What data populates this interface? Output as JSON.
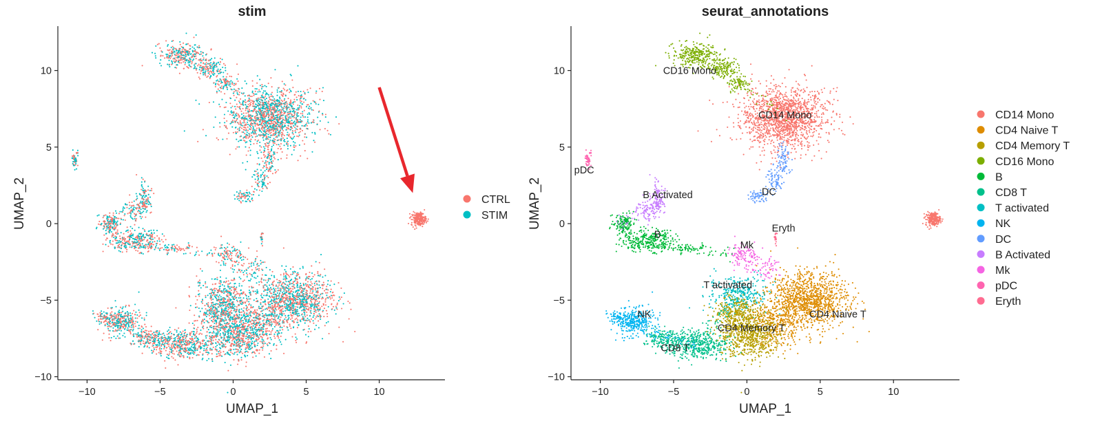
{
  "chart_data": [
    {
      "type": "scatter",
      "title": "stim",
      "xlabel": "UMAP_1",
      "ylabel": "UMAP_2",
      "xlim": [
        -12,
        14.5
      ],
      "ylim": [
        -10.2,
        12.9
      ],
      "xticks": [
        -10,
        -5,
        0,
        5,
        10
      ],
      "yticks": [
        -10,
        -5,
        0,
        5,
        10
      ],
      "grid": false,
      "legend_position": "right",
      "legend": [
        {
          "name": "CTRL",
          "color": "#F8766D"
        },
        {
          "name": "STIM",
          "color": "#00BFC4"
        }
      ],
      "annotations": [
        {
          "type": "arrow",
          "color": "#E8272D",
          "from": [
            10,
            8.9
          ],
          "to": [
            12.3,
            2
          ]
        }
      ]
    },
    {
      "type": "scatter",
      "title": "seurat_annotations",
      "xlabel": "UMAP_1",
      "ylabel": "UMAP_2",
      "xlim": [
        -12,
        14.5
      ],
      "ylim": [
        -10.2,
        12.9
      ],
      "xticks": [
        -10,
        -5,
        0,
        5,
        10
      ],
      "yticks": [
        -10,
        -5,
        0,
        5,
        10
      ],
      "grid": false,
      "legend_position": "right",
      "legend": [
        {
          "name": "CD14 Mono",
          "color": "#F8766D"
        },
        {
          "name": "CD4 Naive T",
          "color": "#DE8C00"
        },
        {
          "name": "CD4 Memory T",
          "color": "#B79F00"
        },
        {
          "name": "CD16 Mono",
          "color": "#7CAE00"
        },
        {
          "name": "B",
          "color": "#00BA38"
        },
        {
          "name": "CD8 T",
          "color": "#00C08B"
        },
        {
          "name": "T activated",
          "color": "#00BFC4"
        },
        {
          "name": "NK",
          "color": "#00B4F0"
        },
        {
          "name": "DC",
          "color": "#619CFF"
        },
        {
          "name": "B Activated",
          "color": "#C77CFF"
        },
        {
          "name": "Mk",
          "color": "#F564E3"
        },
        {
          "name": "pDC",
          "color": "#FF64B0"
        },
        {
          "name": "Eryth",
          "color": "#FF6C91"
        }
      ],
      "cluster_labels": [
        {
          "text": "CD16 Mono",
          "x": -3.9,
          "y": 10
        },
        {
          "text": "CD14 Mono",
          "x": 2.6,
          "y": 7.1
        },
        {
          "text": "pDC",
          "x": -11.1,
          "y": 3.5
        },
        {
          "text": "DC",
          "x": 1.5,
          "y": 2.1
        },
        {
          "text": "B Activated",
          "x": -5.4,
          "y": 1.9
        },
        {
          "text": "Eryth",
          "x": 2.5,
          "y": -0.3
        },
        {
          "text": "B",
          "x": -6.1,
          "y": -0.7
        },
        {
          "text": "Mk",
          "x": 0.0,
          "y": -1.4
        },
        {
          "text": "T activated",
          "x": -1.3,
          "y": -4.0
        },
        {
          "text": "NK",
          "x": -7.0,
          "y": -5.9
        },
        {
          "text": "CD4 Naive T",
          "x": 6.2,
          "y": -5.9
        },
        {
          "text": "CD4 Memory T",
          "x": 0.3,
          "y": -6.8
        },
        {
          "text": "CD8 T",
          "x": -4.9,
          "y": -8.1
        }
      ],
      "clusters": [
        {
          "name": "CD14 Mono",
          "x": 2.5,
          "y": 6.9,
          "sx": 1.45,
          "sy": 1.0,
          "n": 1500
        },
        {
          "name": "CD14 Mono",
          "x": 12.7,
          "y": 0.3,
          "sx": 0.25,
          "sy": 0.22,
          "n": 220
        },
        {
          "name": "CD16 Mono",
          "x": -3.5,
          "y": 11.0,
          "sx": 0.8,
          "sy": 0.4,
          "n": 280
        },
        {
          "name": "CD16 Mono",
          "x": -1.6,
          "y": 10.2,
          "sx": 0.5,
          "sy": 0.35,
          "n": 140
        },
        {
          "name": "CD16 Mono",
          "x": -0.5,
          "y": 9.1,
          "sx": 0.35,
          "sy": 0.3,
          "n": 70
        },
        {
          "name": "DC",
          "x": 2.5,
          "y": 4.2,
          "sx": 0.25,
          "sy": 0.5,
          "n": 80
        },
        {
          "name": "DC",
          "x": 1.9,
          "y": 2.8,
          "sx": 0.3,
          "sy": 0.4,
          "n": 70
        },
        {
          "name": "DC",
          "x": 0.8,
          "y": 1.8,
          "sx": 0.45,
          "sy": 0.2,
          "n": 60
        },
        {
          "name": "pDC",
          "x": -10.8,
          "y": 4.2,
          "sx": 0.12,
          "sy": 0.25,
          "n": 45
        },
        {
          "name": "B Activated",
          "x": -6.1,
          "y": 1.6,
          "sx": 0.22,
          "sy": 0.5,
          "n": 110
        },
        {
          "name": "B Activated",
          "x": -6.7,
          "y": 0.8,
          "sx": 0.35,
          "sy": 0.3,
          "n": 60
        },
        {
          "name": "B",
          "x": -8.4,
          "y": 0.0,
          "sx": 0.35,
          "sy": 0.35,
          "n": 150
        },
        {
          "name": "B",
          "x": -6.8,
          "y": -1.1,
          "sx": 0.9,
          "sy": 0.35,
          "n": 300
        },
        {
          "name": "B",
          "x": -4.5,
          "y": -1.6,
          "sx": 1.0,
          "sy": 0.12,
          "n": 60
        },
        {
          "name": "Eryth",
          "x": 1.95,
          "y": -0.9,
          "sx": 0.05,
          "sy": 0.25,
          "n": 18
        },
        {
          "name": "Mk",
          "x": -0.2,
          "y": -2.2,
          "sx": 0.5,
          "sy": 0.45,
          "n": 120
        },
        {
          "name": "Mk",
          "x": 1.4,
          "y": -3.0,
          "sx": 0.4,
          "sy": 0.35,
          "n": 50
        },
        {
          "name": "T activated",
          "x": -0.6,
          "y": -4.6,
          "sx": 1.0,
          "sy": 0.6,
          "n": 320
        },
        {
          "name": "CD4 Naive T",
          "x": 4.2,
          "y": -5.0,
          "sx": 1.3,
          "sy": 0.9,
          "n": 1100
        },
        {
          "name": "CD4 Naive T",
          "x": 2.0,
          "y": -6.5,
          "sx": 1.0,
          "sy": 0.8,
          "n": 350
        },
        {
          "name": "CD4 Memory T",
          "x": 0.2,
          "y": -7.2,
          "sx": 1.0,
          "sy": 0.8,
          "n": 700
        },
        {
          "name": "CD4 Memory T",
          "x": -0.8,
          "y": -5.8,
          "sx": 0.7,
          "sy": 0.5,
          "n": 250
        },
        {
          "name": "CD8 T",
          "x": -3.4,
          "y": -7.9,
          "sx": 1.1,
          "sy": 0.45,
          "n": 450
        },
        {
          "name": "CD8 T",
          "x": -5.6,
          "y": -7.5,
          "sx": 0.6,
          "sy": 0.35,
          "n": 150
        },
        {
          "name": "NK",
          "x": -7.6,
          "y": -6.4,
          "sx": 0.6,
          "sy": 0.45,
          "n": 300
        },
        {
          "name": "NK",
          "x": -8.8,
          "y": -6.2,
          "sx": 0.35,
          "sy": 0.25,
          "n": 80
        }
      ]
    }
  ]
}
